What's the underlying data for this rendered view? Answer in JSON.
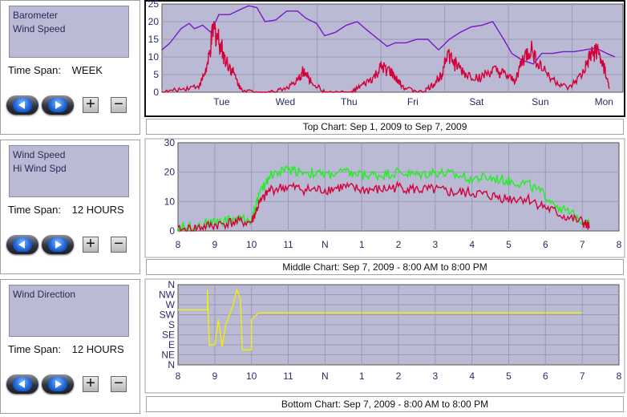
{
  "panels": [
    {
      "series": [
        "Barometer",
        "Wind Speed"
      ],
      "time_span_label": "Time Span:",
      "time_span": "WEEK"
    },
    {
      "series": [
        "Wind Speed",
        "Hi Wind Spd"
      ],
      "time_span_label": "Time Span:",
      "time_span": "12 HOURS"
    },
    {
      "series": [
        "Wind Direction"
      ],
      "time_span_label": "Time Span:",
      "time_span": "12 HOURS"
    }
  ],
  "buttons": {
    "plus": "+",
    "minus": "−"
  },
  "captions": {
    "top": "Top Chart:  Sep 1, 2009  to  Sep 7, 2009",
    "middle": "Middle Chart:  Sep 7, 2009 - 8:00 AM  to  8:00 PM",
    "bottom": "Bottom Chart:  Sep 7, 2009 - 8:00 AM  to  8:00 PM"
  },
  "colors": {
    "plot_bg": "#babad4",
    "barometer": "#7a18c8",
    "wind": "#d4003a",
    "hi_wind": "#22ee22",
    "direction": "#f0f000",
    "axis_text": "#2a2a66"
  },
  "chart_data": [
    {
      "type": "line",
      "categories": [
        "Tue",
        "Wed",
        "Thu",
        "Fri",
        "Sat",
        "Sun",
        "Mon"
      ],
      "ylim": [
        0,
        25
      ],
      "yticks": [
        "0",
        "5",
        "10",
        "15",
        "20",
        "25"
      ],
      "series": [
        {
          "name": "Barometer",
          "points": [
            [
              0,
              12
            ],
            [
              0.3,
              14
            ],
            [
              0.7,
              18
            ],
            [
              1,
              19.5
            ],
            [
              1.2,
              18
            ],
            [
              1.5,
              19
            ],
            [
              1.8,
              17
            ],
            [
              2.1,
              22
            ],
            [
              2.5,
              22
            ],
            [
              2.9,
              23.5
            ],
            [
              3.2,
              24.5
            ],
            [
              3.5,
              24
            ],
            [
              3.8,
              20
            ],
            [
              4.2,
              20.5
            ],
            [
              4.6,
              23
            ],
            [
              5,
              23
            ],
            [
              5.3,
              21
            ],
            [
              5.7,
              19.5
            ],
            [
              6,
              16
            ],
            [
              6.4,
              17
            ],
            [
              6.8,
              19
            ],
            [
              7.2,
              20
            ],
            [
              7.5,
              18
            ],
            [
              7.9,
              15.5
            ],
            [
              8.3,
              13
            ],
            [
              8.6,
              14
            ],
            [
              9,
              14
            ],
            [
              9.4,
              15
            ],
            [
              9.8,
              15
            ],
            [
              10.2,
              12
            ],
            [
              10.6,
              15
            ],
            [
              11,
              17
            ],
            [
              11.4,
              18.5
            ],
            [
              11.8,
              19
            ],
            [
              12.2,
              20
            ],
            [
              12.6,
              15
            ],
            [
              12.9,
              11
            ],
            [
              13.3,
              9
            ],
            [
              13.7,
              8
            ],
            [
              14,
              11
            ],
            [
              14.4,
              11
            ],
            [
              14.8,
              11.5
            ],
            [
              15.2,
              11.5
            ],
            [
              15.6,
              12
            ],
            [
              16,
              12.5
            ],
            [
              16.4,
              11
            ],
            [
              16.7,
              10
            ]
          ]
        },
        {
          "name": "Wind Speed",
          "points": [
            [
              0,
              0
            ],
            [
              0.8,
              1
            ],
            [
              1.4,
              2
            ],
            [
              1.7,
              8
            ],
            [
              1.9,
              18
            ],
            [
              2.1,
              15
            ],
            [
              2.3,
              10
            ],
            [
              2.6,
              6
            ],
            [
              2.9,
              1
            ],
            [
              3.4,
              0
            ],
            [
              4,
              0
            ],
            [
              4.5,
              1
            ],
            [
              5,
              3
            ],
            [
              5.2,
              6
            ],
            [
              5.5,
              3
            ],
            [
              6,
              0
            ],
            [
              7,
              0
            ],
            [
              7.4,
              2
            ],
            [
              7.8,
              4
            ],
            [
              8.1,
              7
            ],
            [
              8.4,
              6
            ],
            [
              8.7,
              3
            ],
            [
              9,
              1
            ],
            [
              9.6,
              0
            ],
            [
              10,
              2
            ],
            [
              10.3,
              5
            ],
            [
              10.5,
              11
            ],
            [
              10.8,
              8
            ],
            [
              11.2,
              5
            ],
            [
              11.7,
              4
            ],
            [
              12.2,
              6
            ],
            [
              12.6,
              5
            ],
            [
              13,
              3
            ],
            [
              13.3,
              9
            ],
            [
              13.6,
              12
            ],
            [
              14,
              7
            ],
            [
              14.5,
              3
            ],
            [
              15,
              1
            ],
            [
              15.5,
              5
            ],
            [
              15.8,
              10
            ],
            [
              16,
              12
            ],
            [
              16.3,
              7
            ],
            [
              16.5,
              1
            ]
          ]
        }
      ]
    },
    {
      "type": "line",
      "categories": [
        "8",
        "9",
        "10",
        "11",
        "N",
        "1",
        "2",
        "3",
        "4",
        "5",
        "6",
        "7",
        "8"
      ],
      "ylim": [
        0,
        30
      ],
      "yticks": [
        "0",
        "10",
        "20",
        "30"
      ],
      "series": [
        {
          "name": "Hi Wind Spd",
          "points": [
            [
              0,
              1
            ],
            [
              0.5,
              2
            ],
            [
              1,
              3
            ],
            [
              1.5,
              4
            ],
            [
              2,
              4
            ],
            [
              2.2,
              12
            ],
            [
              2.5,
              19
            ],
            [
              3,
              21
            ],
            [
              3.5,
              20
            ],
            [
              4,
              19
            ],
            [
              4.5,
              20
            ],
            [
              5,
              19
            ],
            [
              5.5,
              19
            ],
            [
              6,
              20
            ],
            [
              6.5,
              19
            ],
            [
              7,
              20
            ],
            [
              7.5,
              19
            ],
            [
              8,
              18
            ],
            [
              8.5,
              18
            ],
            [
              9,
              17
            ],
            [
              9.5,
              16
            ],
            [
              10,
              12
            ],
            [
              10.5,
              7
            ],
            [
              11,
              4
            ],
            [
              11.2,
              2
            ]
          ]
        },
        {
          "name": "Wind Speed",
          "points": [
            [
              0,
              0
            ],
            [
              0.5,
              1
            ],
            [
              1,
              2
            ],
            [
              1.5,
              3
            ],
            [
              2,
              3
            ],
            [
              2.2,
              9
            ],
            [
              2.5,
              14
            ],
            [
              3,
              15
            ],
            [
              3.5,
              14
            ],
            [
              4,
              14
            ],
            [
              4.5,
              15
            ],
            [
              5,
              14
            ],
            [
              5.5,
              14
            ],
            [
              6,
              15
            ],
            [
              6.5,
              14
            ],
            [
              7,
              14
            ],
            [
              7.5,
              13
            ],
            [
              8,
              13
            ],
            [
              8.5,
              12
            ],
            [
              9,
              11
            ],
            [
              9.5,
              11
            ],
            [
              10,
              8
            ],
            [
              10.5,
              5
            ],
            [
              11,
              3
            ],
            [
              11.2,
              1
            ]
          ]
        }
      ]
    },
    {
      "type": "line",
      "categories": [
        "8",
        "9",
        "10",
        "11",
        "N",
        "1",
        "2",
        "3",
        "4",
        "5",
        "6",
        "7",
        "8"
      ],
      "ylim": [
        0,
        8
      ],
      "yticks": [
        "N",
        "NE",
        "E",
        "SE",
        "S",
        "SW",
        "W",
        "NW",
        "N"
      ],
      "series": [
        {
          "name": "Wind Direction",
          "points": [
            [
              0,
              5.5
            ],
            [
              0.8,
              5.5
            ],
            [
              0.8,
              7.5
            ],
            [
              0.85,
              2
            ],
            [
              1.0,
              2
            ],
            [
              1.1,
              4.5
            ],
            [
              1.2,
              1.8
            ],
            [
              1.3,
              4
            ],
            [
              1.5,
              6
            ],
            [
              1.6,
              7.5
            ],
            [
              1.7,
              6.5
            ],
            [
              1.75,
              1.5
            ],
            [
              2.0,
              1.5
            ],
            [
              2.0,
              4.5
            ],
            [
              2.2,
              5.2
            ],
            [
              3,
              5.2
            ],
            [
              4,
              5.2
            ],
            [
              5,
              5.2
            ],
            [
              6,
              5.2
            ],
            [
              7,
              5.2
            ],
            [
              8,
              5.2
            ],
            [
              9,
              5.2
            ],
            [
              10,
              5.2
            ],
            [
              11,
              5.2
            ]
          ]
        }
      ]
    }
  ]
}
